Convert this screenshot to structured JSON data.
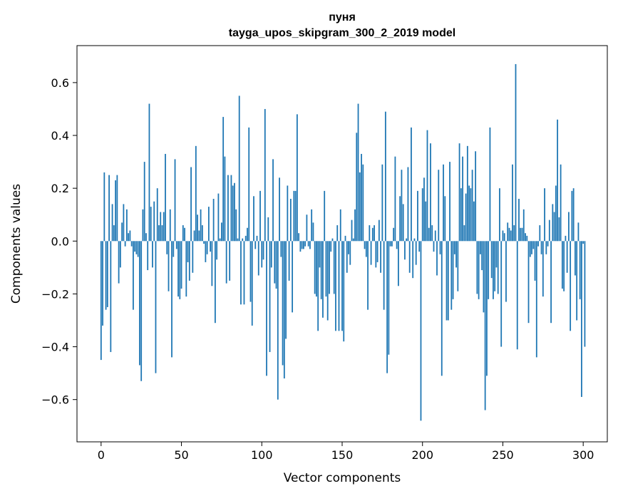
{
  "chart_data": {
    "type": "bar",
    "title": "пуня",
    "subtitle": "tayga_upos_skipgram_300_2_2019 model",
    "xlabel": "Vector components",
    "ylabel": "Components values",
    "xlim": [
      -15,
      315
    ],
    "ylim": [
      -0.76,
      0.74
    ],
    "xticks": [
      0,
      50,
      100,
      150,
      200,
      250,
      300
    ],
    "xtick_labels": [
      "0",
      "50",
      "100",
      "150",
      "200",
      "250",
      "300"
    ],
    "yticks": [
      -0.6,
      -0.4,
      -0.2,
      0.0,
      0.2,
      0.4,
      0.6
    ],
    "ytick_labels": [
      "−0.6",
      "−0.4",
      "−0.2",
      "0.0",
      "0.2",
      "0.4",
      "0.6"
    ],
    "bar_color": "#1f77b4",
    "values": [
      -0.45,
      -0.32,
      0.26,
      -0.26,
      -0.25,
      0.25,
      -0.42,
      0.14,
      0.06,
      0.23,
      0.25,
      -0.16,
      -0.1,
      0.07,
      0.14,
      -0.02,
      0.12,
      0.03,
      0.04,
      -0.02,
      -0.26,
      -0.04,
      -0.05,
      -0.06,
      -0.47,
      -0.53,
      0.12,
      0.3,
      0.03,
      -0.11,
      0.52,
      0.13,
      -0.1,
      0.15,
      -0.5,
      0.2,
      0.06,
      0.11,
      0.06,
      0.11,
      0.33,
      -0.05,
      -0.19,
      0.12,
      -0.44,
      -0.06,
      0.31,
      -0.03,
      -0.21,
      -0.22,
      -0.18,
      0.06,
      0.05,
      -0.21,
      -0.08,
      -0.15,
      0.28,
      -0.12,
      0.04,
      0.36,
      0.1,
      0.04,
      0.12,
      0.06,
      -0.01,
      -0.08,
      -0.05,
      0.13,
      -0.04,
      -0.17,
      0.16,
      -0.31,
      -0.07,
      0.18,
      0.01,
      0.07,
      0.47,
      0.32,
      -0.16,
      0.25,
      -0.15,
      0.25,
      0.21,
      0.22,
      0.12,
      0.01,
      0.55,
      -0.24,
      0.01,
      -0.24,
      0.02,
      0.05,
      0.43,
      -0.23,
      -0.32,
      0.17,
      -0.03,
      0.02,
      -0.13,
      0.19,
      -0.1,
      -0.07,
      0.5,
      -0.51,
      0.09,
      -0.42,
      -0.1,
      0.31,
      -0.16,
      -0.18,
      -0.6,
      0.24,
      -0.06,
      -0.47,
      -0.52,
      -0.37,
      0.21,
      -0.15,
      0.16,
      -0.27,
      0.19,
      0.19,
      0.48,
      0.03,
      -0.04,
      -0.03,
      -0.03,
      -0.02,
      0.1,
      -0.02,
      -0.03,
      0.12,
      0.07,
      -0.2,
      -0.21,
      -0.34,
      -0.1,
      -0.22,
      -0.29,
      0.19,
      -0.21,
      -0.3,
      -0.2,
      -0.04,
      0.01,
      -0.2,
      -0.34,
      0.06,
      -0.34,
      0.12,
      -0.34,
      -0.38,
      0.02,
      -0.12,
      -0.05,
      -0.09,
      0.08,
      0.01,
      0.12,
      0.41,
      0.52,
      0.26,
      0.33,
      0.29,
      -0.03,
      -0.06,
      -0.26,
      0.06,
      -0.09,
      0.05,
      0.06,
      -0.1,
      -0.08,
      0.08,
      -0.12,
      0.29,
      -0.26,
      0.49,
      -0.5,
      -0.43,
      -0.02,
      -0.02,
      0.05,
      0.32,
      -0.03,
      -0.17,
      0.17,
      0.27,
      0.14,
      -0.07,
      0.01,
      0.28,
      -0.12,
      0.43,
      -0.14,
      0.01,
      -0.09,
      0.19,
      -0.04,
      -0.68,
      0.2,
      0.24,
      0.15,
      0.42,
      0.05,
      0.37,
      0.06,
      -0.04,
      0.04,
      -0.13,
      0.27,
      -0.05,
      -0.51,
      0.29,
      0.17,
      -0.3,
      -0.3,
      0.3,
      -0.26,
      -0.22,
      -0.05,
      -0.1,
      -0.19,
      0.37,
      0.2,
      0.32,
      0.06,
      0.18,
      0.36,
      0.21,
      0.2,
      0.27,
      0.15,
      0.34,
      -0.2,
      -0.22,
      -0.05,
      -0.11,
      -0.27,
      -0.64,
      -0.51,
      -0.22,
      0.43,
      -0.14,
      -0.22,
      -0.19,
      -0.1,
      -0.2,
      0.2,
      -0.4,
      0.04,
      0.03,
      -0.23,
      0.07,
      0.05,
      0.04,
      0.29,
      0.06,
      0.67,
      -0.41,
      0.16,
      0.05,
      0.05,
      0.12,
      0.03,
      0.02,
      -0.31,
      -0.06,
      -0.05,
      -0.03,
      -0.15,
      -0.44,
      -0.02,
      0.06,
      -0.05,
      -0.21,
      0.2,
      -0.05,
      -0.02,
      0.08,
      -0.31,
      0.14,
      0.11,
      0.21,
      0.46,
      0.09,
      0.29,
      -0.18,
      -0.19,
      0.02,
      -0.12,
      0.11,
      -0.34,
      0.19,
      0.2,
      -0.13,
      -0.3,
      0.07,
      -0.22,
      -0.59,
      -0.01,
      -0.4
    ]
  }
}
